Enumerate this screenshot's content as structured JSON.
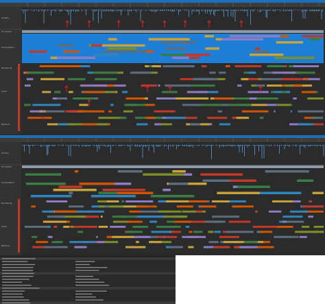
{
  "panels": [
    {
      "rows": [
        "Activity",
        "UI Thread",
        "Composition",
        "Rendering",
        "Input",
        "Network"
      ]
    },
    {
      "rows": [
        "Activity",
        "UI Thread",
        "Composition",
        "Rendering",
        "Input",
        "Network"
      ]
    }
  ]
}
